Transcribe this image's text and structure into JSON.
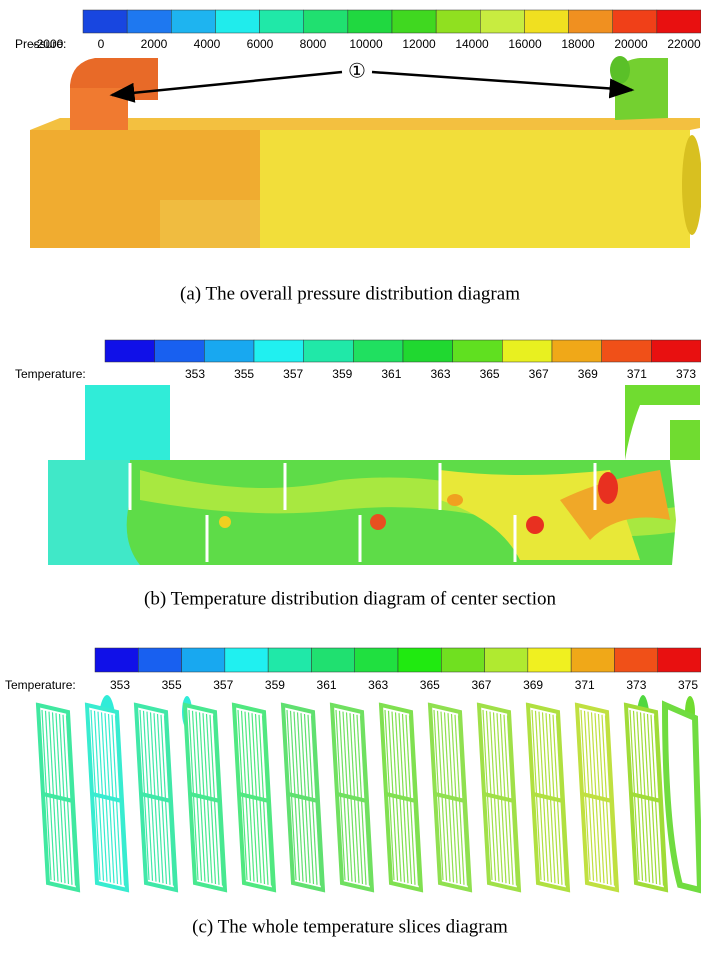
{
  "panels": [
    {
      "colorbar": {
        "label": "Pressure:",
        "ticks": [
          -2000,
          0,
          2000,
          4000,
          6000,
          8000,
          10000,
          12000,
          14000,
          16000,
          18000,
          20000,
          22000
        ],
        "colors": [
          "#1846e0",
          "#1e78f0",
          "#1eb4f0",
          "#20ecec",
          "#20e8a8",
          "#20e070",
          "#20d840",
          "#40d820",
          "#90e020",
          "#c8ec40",
          "#f0e020",
          "#f09020",
          "#f04018",
          "#e81010"
        ]
      },
      "annotation": "①",
      "caption": "(a) The overall pressure distribution diagram"
    },
    {
      "colorbar": {
        "label": "Temperature:",
        "ticks": [
          353,
          355,
          357,
          359,
          361,
          363,
          365,
          367,
          369,
          371,
          373
        ],
        "colors": [
          "#1010e8",
          "#1860f0",
          "#18a8f0",
          "#20f0f0",
          "#20e8a8",
          "#20e060",
          "#20d830",
          "#60e020",
          "#e8f020",
          "#f0a818",
          "#f05018",
          "#e81010"
        ]
      },
      "caption": "(b) Temperature distribution diagram of center section"
    },
    {
      "colorbar": {
        "label": "Temperature:",
        "ticks": [
          353,
          355,
          357,
          359,
          361,
          363,
          365,
          367,
          369,
          371,
          373,
          375
        ],
        "colors": [
          "#1010e8",
          "#1860f0",
          "#18a8f0",
          "#20f0f0",
          "#20e8a8",
          "#20e070",
          "#20e040",
          "#20ea10",
          "#70e020",
          "#b0ea30",
          "#f0f020",
          "#f0a818",
          "#f05018",
          "#e81010"
        ]
      },
      "caption": "(c) The whole temperature slices diagram"
    }
  ]
}
